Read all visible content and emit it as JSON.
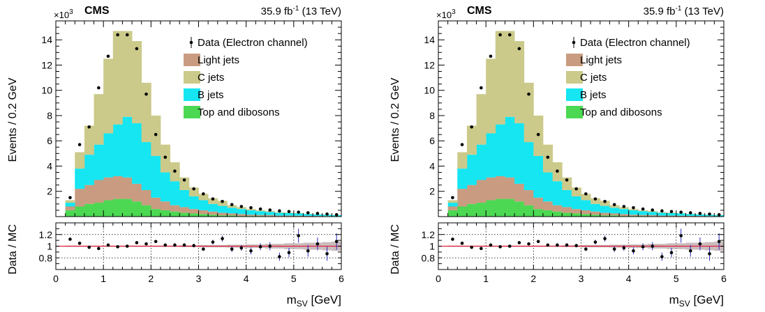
{
  "chart_data": [
    {
      "type": "bar",
      "cms_label": "CMS",
      "exponent_base": "×10",
      "exponent_power": "3",
      "lumi_value": "35.9 fb",
      "lumi_unit_power": "-1",
      "energy": " (13 TeV)",
      "ylabel": "Events / 0.2 GeV",
      "ratio_ylabel": "Data / MC",
      "xlabel_base": "m",
      "xlabel_sub": "SV",
      "xlabel_unit": " [GeV]",
      "xlim": [
        0,
        6
      ],
      "ylim": [
        0,
        15.5
      ],
      "ratio_ylim": [
        0.6,
        1.4
      ],
      "xticks": [
        "0",
        "1",
        "2",
        "3",
        "4",
        "5",
        "6"
      ],
      "yticks": [
        "2",
        "4",
        "6",
        "8",
        "10",
        "12",
        "14"
      ],
      "ratio_yticks": [
        "0.8",
        "1",
        "1.2"
      ],
      "legend": {
        "placement": "top-right",
        "data": "Data (Electron channel)",
        "light": "Light jets",
        "c": "C jets",
        "b": "B jets",
        "top": "Top and dibosons"
      },
      "colors": {
        "light": "#c99b80",
        "c": "#cbca8a",
        "b": "#15e6f2",
        "top": "#4cd852",
        "data": "#000000",
        "ratio_line": "#e0203a",
        "ratio_error": "#2a2ab8",
        "mc_unc": "#b7a4a8"
      },
      "bins_low": [
        0.2,
        0.4,
        0.6,
        0.8,
        1.0,
        1.2,
        1.4,
        1.6,
        1.8,
        2.0,
        2.2,
        2.4,
        2.6,
        2.8,
        3.0,
        3.2,
        3.4,
        3.6,
        3.8,
        4.0,
        4.2,
        4.4,
        4.6,
        4.8,
        5.0,
        5.2,
        5.4,
        5.6,
        5.8
      ],
      "bin_width": 0.2,
      "series": [
        {
          "name": "Top and dibosons",
          "values": [
            0.5,
            0.8,
            1.0,
            1.1,
            1.3,
            1.4,
            1.4,
            1.2,
            0.9,
            0.6,
            0.5,
            0.4,
            0.3,
            0.25,
            0.2,
            0.15,
            0.1,
            0.1,
            0.05,
            0.05,
            0.05,
            0.04,
            0.03,
            0.03,
            0.02,
            0.02,
            0.02,
            0.01,
            0.01
          ]
        },
        {
          "name": "Light jets",
          "values": [
            0.3,
            1.4,
            1.5,
            1.8,
            1.8,
            1.8,
            1.7,
            1.4,
            1.2,
            0.9,
            0.7,
            0.5,
            0.45,
            0.35,
            0.3,
            0.25,
            0.2,
            0.15,
            0.15,
            0.1,
            0.08,
            0.08,
            0.05,
            0.05,
            0.05,
            0.04,
            0.03,
            0.03,
            0.02
          ]
        },
        {
          "name": "B jets",
          "values": [
            0.3,
            1.6,
            2.4,
            2.8,
            3.5,
            4.1,
            4.8,
            4.8,
            3.8,
            3.3,
            2.3,
            1.9,
            1.35,
            1.0,
            0.8,
            0.6,
            0.55,
            0.45,
            0.4,
            0.35,
            0.3,
            0.25,
            0.22,
            0.2,
            0.18,
            0.14,
            0.12,
            0.1,
            0.09
          ]
        },
        {
          "name": "C jets",
          "values": [
            0.2,
            1.3,
            2.3,
            4.0,
            5.9,
            7.4,
            6.8,
            6.5,
            4.7,
            3.2,
            2.2,
            1.5,
            1.0,
            0.7,
            0.5,
            0.45,
            0.4,
            0.2,
            0.15,
            0.1,
            0.07,
            0.08,
            0.05,
            0.04,
            0.03,
            0.03,
            0.02,
            0.02,
            0.02
          ]
        }
      ],
      "data_points": [
        1.5,
        5.7,
        7.1,
        10.2,
        12.7,
        14.4,
        14.4,
        13.3,
        9.7,
        6.5,
        4.7,
        3.6,
        2.9,
        2.2,
        1.8,
        1.4,
        1.2,
        0.95,
        0.8,
        0.7,
        0.6,
        0.52,
        0.45,
        0.4,
        0.35,
        0.3,
        0.25,
        0.2,
        0.15
      ],
      "ratio": [
        1.12,
        1.05,
        0.98,
        0.96,
        1.02,
        0.99,
        1.0,
        1.06,
        1.04,
        1.08,
        1.02,
        1.02,
        1.02,
        1.01,
        0.95,
        1.07,
        1.13,
        0.95,
        0.97,
        0.92,
        0.99,
        1.0,
        0.82,
        0.89,
        1.18,
        0.92,
        1.04,
        0.87,
        1.08
      ],
      "ratio_err": [
        0.02,
        0.02,
        0.02,
        0.02,
        0.02,
        0.02,
        0.02,
        0.02,
        0.02,
        0.02,
        0.02,
        0.03,
        0.03,
        0.03,
        0.03,
        0.04,
        0.05,
        0.05,
        0.05,
        0.06,
        0.06,
        0.07,
        0.07,
        0.08,
        0.12,
        0.1,
        0.11,
        0.12,
        0.14
      ],
      "mc_unc": [
        0.01,
        0.01,
        0.01,
        0.01,
        0.01,
        0.01,
        0.01,
        0.01,
        0.01,
        0.01,
        0.01,
        0.01,
        0.015,
        0.015,
        0.02,
        0.02,
        0.02,
        0.025,
        0.025,
        0.03,
        0.03,
        0.04,
        0.04,
        0.05,
        0.05,
        0.06,
        0.06,
        0.07,
        0.08
      ]
    },
    {
      "type": "bar",
      "cms_label": "CMS",
      "exponent_base": "×10",
      "exponent_power": "3",
      "lumi_value": "35.9 fb",
      "lumi_unit_power": "-1",
      "energy": " (13 TeV)",
      "ylabel": "Events / 0.2 GeV",
      "ratio_ylabel": "Data / MC",
      "xlabel_base": "m",
      "xlabel_sub": "SV",
      "xlabel_unit": " [GeV]",
      "xlim": [
        0,
        6
      ],
      "ylim": [
        0,
        15.5
      ],
      "ratio_ylim": [
        0.6,
        1.4
      ],
      "xticks": [
        "0",
        "1",
        "2",
        "3",
        "4",
        "5",
        "6"
      ],
      "yticks": [
        "2",
        "4",
        "6",
        "8",
        "10",
        "12",
        "14"
      ],
      "ratio_yticks": [
        "0.8",
        "1",
        "1.2"
      ],
      "legend": {
        "placement": "top-right",
        "data": "Data (Electron channel)",
        "light": "Light jets",
        "c": "C jets",
        "b": "B jets",
        "top": "Top and dibosons"
      },
      "colors": {
        "light": "#c99b80",
        "c": "#cbca8a",
        "b": "#15e6f2",
        "top": "#4cd852",
        "data": "#000000",
        "ratio_line": "#e0203a",
        "ratio_error": "#2a2ab8",
        "mc_unc": "#b7a4a8"
      },
      "bins_low": [
        0.2,
        0.4,
        0.6,
        0.8,
        1.0,
        1.2,
        1.4,
        1.6,
        1.8,
        2.0,
        2.2,
        2.4,
        2.6,
        2.8,
        3.0,
        3.2,
        3.4,
        3.6,
        3.8,
        4.0,
        4.2,
        4.4,
        4.6,
        4.8,
        5.0,
        5.2,
        5.4,
        5.6,
        5.8
      ],
      "bin_width": 0.2,
      "series": [
        {
          "name": "Top and dibosons",
          "values": [
            0.5,
            0.8,
            1.0,
            1.1,
            1.3,
            1.4,
            1.4,
            1.2,
            0.9,
            0.6,
            0.5,
            0.4,
            0.3,
            0.25,
            0.2,
            0.15,
            0.1,
            0.1,
            0.05,
            0.05,
            0.05,
            0.04,
            0.03,
            0.03,
            0.02,
            0.02,
            0.02,
            0.01,
            0.01
          ]
        },
        {
          "name": "Light jets",
          "values": [
            0.3,
            1.4,
            1.5,
            1.8,
            1.8,
            1.8,
            1.7,
            1.4,
            1.2,
            0.9,
            0.7,
            0.5,
            0.45,
            0.35,
            0.3,
            0.25,
            0.2,
            0.15,
            0.15,
            0.1,
            0.08,
            0.08,
            0.05,
            0.05,
            0.05,
            0.04,
            0.03,
            0.03,
            0.02
          ]
        },
        {
          "name": "B jets",
          "values": [
            0.3,
            1.6,
            2.4,
            2.8,
            3.5,
            4.1,
            4.8,
            4.8,
            3.8,
            3.3,
            2.3,
            1.9,
            1.35,
            1.0,
            0.8,
            0.6,
            0.55,
            0.45,
            0.4,
            0.35,
            0.3,
            0.25,
            0.22,
            0.2,
            0.18,
            0.14,
            0.12,
            0.1,
            0.09
          ]
        },
        {
          "name": "C jets",
          "values": [
            0.2,
            1.3,
            2.3,
            4.0,
            5.9,
            7.4,
            6.8,
            6.5,
            4.7,
            3.2,
            2.2,
            1.5,
            1.0,
            0.7,
            0.5,
            0.45,
            0.4,
            0.2,
            0.15,
            0.1,
            0.07,
            0.08,
            0.05,
            0.04,
            0.03,
            0.03,
            0.02,
            0.02,
            0.02
          ]
        }
      ],
      "data_points": [
        1.5,
        5.7,
        7.1,
        10.2,
        12.7,
        14.4,
        14.4,
        13.3,
        9.7,
        6.5,
        4.7,
        3.6,
        2.9,
        2.2,
        1.8,
        1.4,
        1.2,
        0.95,
        0.8,
        0.7,
        0.6,
        0.52,
        0.45,
        0.4,
        0.35,
        0.3,
        0.25,
        0.2,
        0.15
      ],
      "ratio": [
        1.12,
        1.05,
        0.98,
        0.96,
        1.02,
        0.99,
        1.0,
        1.06,
        1.04,
        1.08,
        1.02,
        1.02,
        1.02,
        1.01,
        0.95,
        1.07,
        1.13,
        0.95,
        0.97,
        0.92,
        0.99,
        1.0,
        0.82,
        0.89,
        1.18,
        0.92,
        1.04,
        0.87,
        1.08
      ],
      "ratio_err": [
        0.02,
        0.02,
        0.02,
        0.02,
        0.02,
        0.02,
        0.02,
        0.02,
        0.02,
        0.02,
        0.02,
        0.03,
        0.03,
        0.03,
        0.03,
        0.04,
        0.05,
        0.05,
        0.05,
        0.06,
        0.06,
        0.07,
        0.07,
        0.08,
        0.12,
        0.1,
        0.11,
        0.12,
        0.14
      ],
      "mc_unc": [
        0.01,
        0.01,
        0.01,
        0.01,
        0.01,
        0.01,
        0.01,
        0.01,
        0.01,
        0.01,
        0.01,
        0.01,
        0.015,
        0.015,
        0.02,
        0.02,
        0.02,
        0.025,
        0.025,
        0.03,
        0.03,
        0.04,
        0.04,
        0.05,
        0.05,
        0.06,
        0.06,
        0.07,
        0.08
      ]
    }
  ]
}
